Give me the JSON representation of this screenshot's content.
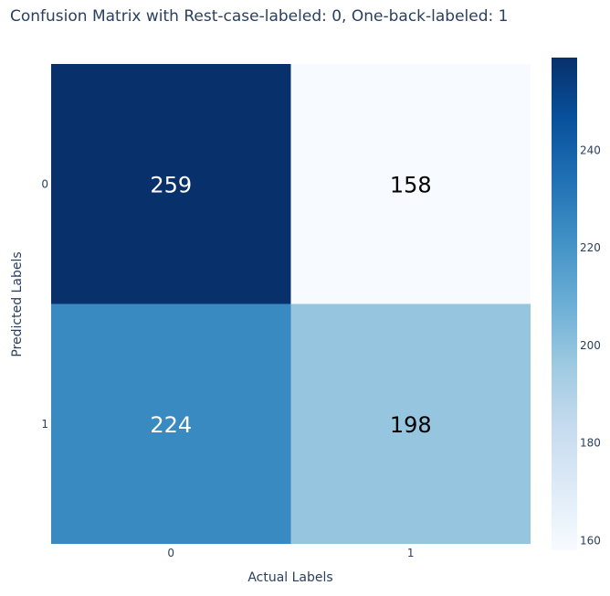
{
  "chart_data": {
    "type": "heatmap",
    "title": "Confusion Matrix with Rest-case-labeled: 0, One-back-labeled: 1",
    "xlabel": "Actual Labels",
    "ylabel": "Predicted Labels",
    "x_categories": [
      "0",
      "1"
    ],
    "y_categories": [
      "0",
      "1"
    ],
    "z": [
      [
        259,
        158
      ],
      [
        224,
        198
      ]
    ],
    "colorscale": "Blues",
    "zrange": [
      158,
      259
    ],
    "colorbar_ticks": [
      160,
      180,
      200,
      220,
      240
    ],
    "grid": false
  }
}
